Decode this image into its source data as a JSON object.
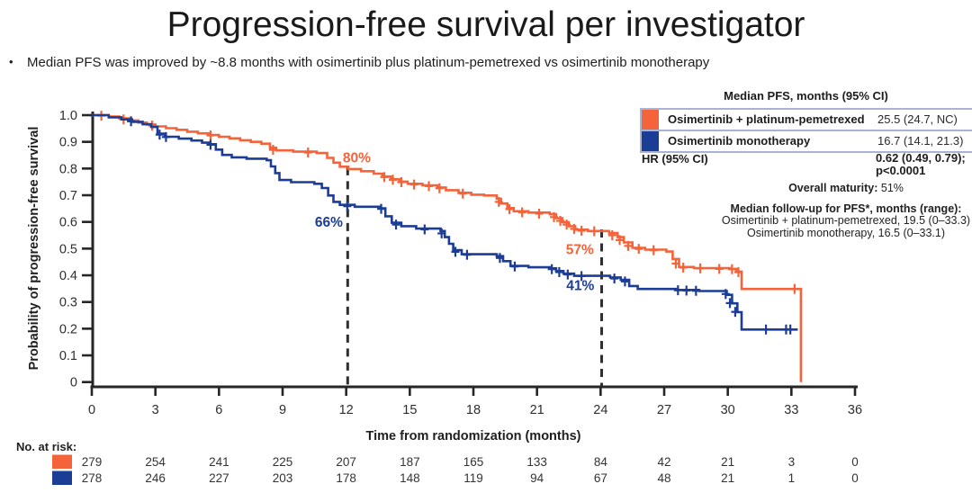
{
  "title": "Progression-free survival per investigator",
  "bullet": "Median PFS was improved by ~8.8 months with osimertinib plus platinum-pemetrexed vs osimertinib monotherapy",
  "colors": {
    "orange": "#F4633A",
    "blue": "#1C3D96",
    "axis": "#262626",
    "dashed": "#2F2F2F",
    "table_border": "#A9B3D2",
    "text": "#1c1c1c"
  },
  "legend_table": {
    "header": "Median PFS, months (95% CI)",
    "rows": [
      {
        "label": "Osimertinib + platinum-pemetrexed",
        "value": "25.5 (24.7, NC)",
        "color_key": "orange"
      },
      {
        "label": "Osimertinib monotherapy",
        "value": "16.7 (14.1, 21.3)",
        "color_key": "blue"
      }
    ],
    "hr_label": "HR (95% CI)",
    "hr_value_line1": "0.62 (0.49, 0.79);",
    "hr_value_line2": "p<0.0001"
  },
  "maturity": {
    "label": "Overall maturity:",
    "value": " 51%"
  },
  "followup": {
    "header": "Median follow-up for PFS*, months (range):",
    "line1": "Osimertinib + platinum-pemetrexed, 19.5 (0–33.3)",
    "line2": "Osimertinib monotherapy, 16.5 (0–33.1)"
  },
  "chart_data": {
    "type": "line",
    "subtype": "kaplan-meier-step",
    "xlabel": "Time from randomization (months)",
    "ylabel": "Probability of progression-free survival",
    "xlim": [
      0,
      36
    ],
    "ylim": [
      0,
      1.0
    ],
    "xticks": [
      0,
      3,
      6,
      9,
      12,
      15,
      18,
      21,
      24,
      27,
      30,
      33,
      36
    ],
    "ytick_labels": [
      "0",
      "0.1",
      "0.2",
      "0.3",
      "0.4",
      "0.5",
      "0.6",
      "0.7",
      "0.8",
      "0.9",
      "1.0"
    ],
    "grid": false,
    "reference_lines": [
      {
        "x": 12.07,
        "y_top": 0.805
      },
      {
        "x": 24.05,
        "y_top": 0.572
      }
    ],
    "annotations": [
      {
        "text": "80%",
        "x": 12.5,
        "y": 0.823,
        "color_key": "orange"
      },
      {
        "text": "66%",
        "x": 11.18,
        "y": 0.582,
        "color_key": "blue"
      },
      {
        "text": "57%",
        "x": 23.02,
        "y": 0.479,
        "color_key": "orange"
      },
      {
        "text": "41%",
        "x": 23.04,
        "y": 0.344,
        "color_key": "blue"
      }
    ],
    "landmark_estimates": [
      {
        "month": 12,
        "orange_pct": 80,
        "blue_pct": 66
      },
      {
        "month": 24,
        "orange_pct": 57,
        "blue_pct": 41
      }
    ],
    "series": [
      {
        "name": "Osimertinib + platinum-pemetrexed",
        "color_key": "orange",
        "steps": [
          [
            0,
            1
          ],
          [
            0.8,
            0.995
          ],
          [
            1.3,
            0.988
          ],
          [
            1.8,
            0.98
          ],
          [
            2.2,
            0.972
          ],
          [
            2.6,
            0.965
          ],
          [
            3,
            0.958
          ],
          [
            3.5,
            0.951
          ],
          [
            4,
            0.945
          ],
          [
            4.5,
            0.938
          ],
          [
            5,
            0.932
          ],
          [
            5.5,
            0.926
          ],
          [
            6,
            0.919
          ],
          [
            6.5,
            0.913
          ],
          [
            7,
            0.906
          ],
          [
            7.5,
            0.9
          ],
          [
            8,
            0.893
          ],
          [
            8.4,
            0.878
          ],
          [
            8.7,
            0.868
          ],
          [
            9.5,
            0.863
          ],
          [
            10.6,
            0.858
          ],
          [
            11.1,
            0.84
          ],
          [
            11.4,
            0.822
          ],
          [
            11.7,
            0.807
          ],
          [
            12.1,
            0.798
          ],
          [
            12.7,
            0.79
          ],
          [
            13.3,
            0.781
          ],
          [
            13.7,
            0.77
          ],
          [
            14.1,
            0.76
          ],
          [
            14.5,
            0.751
          ],
          [
            14.9,
            0.743
          ],
          [
            15.6,
            0.737
          ],
          [
            16.3,
            0.729
          ],
          [
            16.7,
            0.719
          ],
          [
            17.3,
            0.709
          ],
          [
            17.9,
            0.702
          ],
          [
            18.5,
            0.699
          ],
          [
            19.1,
            0.687
          ],
          [
            19.3,
            0.669
          ],
          [
            19.6,
            0.652
          ],
          [
            19.9,
            0.64
          ],
          [
            20.6,
            0.635
          ],
          [
            21.6,
            0.629
          ],
          [
            21.9,
            0.614
          ],
          [
            22.2,
            0.599
          ],
          [
            22.5,
            0.584
          ],
          [
            22.8,
            0.571
          ],
          [
            23.4,
            0.566
          ],
          [
            24.4,
            0.558
          ],
          [
            24.8,
            0.543
          ],
          [
            25.1,
            0.523
          ],
          [
            25.5,
            0.503
          ],
          [
            26.1,
            0.496
          ],
          [
            27.1,
            0.489
          ],
          [
            27.4,
            0.461
          ],
          [
            27.7,
            0.431
          ],
          [
            28.4,
            0.427
          ],
          [
            30.1,
            0.424
          ],
          [
            30.4,
            0.414
          ],
          [
            30.65,
            0.349
          ],
          [
            33.45,
            0.349
          ],
          [
            33.45,
            0
          ]
        ],
        "censors": [
          [
            0.45,
            0.998
          ],
          [
            1.5,
            0.984
          ],
          [
            2.85,
            0.961
          ],
          [
            5.6,
            0.924
          ],
          [
            8.55,
            0.87
          ],
          [
            10.2,
            0.86
          ],
          [
            13.8,
            0.768
          ],
          [
            14.2,
            0.758
          ],
          [
            14.6,
            0.749
          ],
          [
            15.2,
            0.74
          ],
          [
            15.9,
            0.734
          ],
          [
            16.4,
            0.726
          ],
          [
            17.5,
            0.706
          ],
          [
            19.2,
            0.675
          ],
          [
            19.7,
            0.648
          ],
          [
            20.3,
            0.636
          ],
          [
            21.1,
            0.631
          ],
          [
            21.8,
            0.618
          ],
          [
            22.1,
            0.604
          ],
          [
            22.4,
            0.59
          ],
          [
            22.75,
            0.574
          ],
          [
            23.1,
            0.567
          ],
          [
            23.7,
            0.565
          ],
          [
            24.55,
            0.55
          ],
          [
            24.9,
            0.532
          ],
          [
            25.3,
            0.51
          ],
          [
            25.8,
            0.499
          ],
          [
            26.5,
            0.494
          ],
          [
            27.55,
            0.444
          ],
          [
            27.9,
            0.429
          ],
          [
            28.7,
            0.426
          ],
          [
            29.6,
            0.424
          ],
          [
            30.2,
            0.423
          ],
          [
            30.5,
            0.412
          ],
          [
            33.15,
            0.349
          ]
        ]
      },
      {
        "name": "Osimertinib monotherapy",
        "color_key": "blue",
        "steps": [
          [
            0,
            1
          ],
          [
            0.8,
            0.992
          ],
          [
            1.4,
            0.984
          ],
          [
            1.9,
            0.975
          ],
          [
            2.4,
            0.966
          ],
          [
            2.8,
            0.956
          ],
          [
            3.1,
            0.931
          ],
          [
            3.45,
            0.919
          ],
          [
            4.1,
            0.912
          ],
          [
            4.7,
            0.905
          ],
          [
            5.2,
            0.897
          ],
          [
            5.55,
            0.891
          ],
          [
            5.85,
            0.871
          ],
          [
            6.15,
            0.851
          ],
          [
            6.6,
            0.842
          ],
          [
            7.3,
            0.837
          ],
          [
            8.25,
            0.831
          ],
          [
            8.45,
            0.808
          ],
          [
            8.65,
            0.783
          ],
          [
            8.85,
            0.757
          ],
          [
            9.4,
            0.749
          ],
          [
            10.5,
            0.743
          ],
          [
            10.85,
            0.727
          ],
          [
            11.15,
            0.699
          ],
          [
            11.4,
            0.675
          ],
          [
            11.7,
            0.664
          ],
          [
            12.4,
            0.657
          ],
          [
            13.6,
            0.651
          ],
          [
            13.85,
            0.621
          ],
          [
            14.15,
            0.597
          ],
          [
            14.6,
            0.584
          ],
          [
            15.3,
            0.575
          ],
          [
            16.45,
            0.566
          ],
          [
            16.65,
            0.543
          ],
          [
            16.85,
            0.518
          ],
          [
            17.05,
            0.494
          ],
          [
            17.45,
            0.479
          ],
          [
            19.1,
            0.472
          ],
          [
            19.4,
            0.453
          ],
          [
            19.75,
            0.435
          ],
          [
            20.6,
            0.43
          ],
          [
            21.6,
            0.426
          ],
          [
            21.9,
            0.416
          ],
          [
            22.25,
            0.406
          ],
          [
            22.75,
            0.398
          ],
          [
            24.45,
            0.392
          ],
          [
            24.95,
            0.383
          ],
          [
            25.35,
            0.36
          ],
          [
            25.75,
            0.349
          ],
          [
            27.55,
            0.345
          ],
          [
            28.65,
            0.341
          ],
          [
            29.95,
            0.327
          ],
          [
            30.2,
            0.295
          ],
          [
            30.45,
            0.262
          ],
          [
            30.65,
            0.197
          ],
          [
            33.3,
            0.197
          ]
        ],
        "censors": [
          [
            1.85,
            0.977
          ],
          [
            3.2,
            0.927
          ],
          [
            3.5,
            0.918
          ],
          [
            5.6,
            0.889
          ],
          [
            12.05,
            0.659
          ],
          [
            13.65,
            0.649
          ],
          [
            14.35,
            0.59
          ],
          [
            15.7,
            0.572
          ],
          [
            16.5,
            0.557
          ],
          [
            17.15,
            0.488
          ],
          [
            17.7,
            0.477
          ],
          [
            19.25,
            0.465
          ],
          [
            19.95,
            0.433
          ],
          [
            21.7,
            0.423
          ],
          [
            22.05,
            0.412
          ],
          [
            22.45,
            0.403
          ],
          [
            23.1,
            0.397
          ],
          [
            24.65,
            0.388
          ],
          [
            25.15,
            0.377
          ],
          [
            27.65,
            0.344
          ],
          [
            28.05,
            0.343
          ],
          [
            28.5,
            0.342
          ],
          [
            29.9,
            0.33
          ],
          [
            30.1,
            0.296
          ],
          [
            30.35,
            0.263
          ],
          [
            31.8,
            0.197
          ],
          [
            32.75,
            0.197
          ],
          [
            32.95,
            0.197
          ]
        ]
      }
    ]
  },
  "at_risk": {
    "label": "No. at risk:",
    "timepoints": [
      0,
      3,
      6,
      9,
      12,
      15,
      18,
      21,
      24,
      27,
      30,
      33,
      36
    ],
    "rows": [
      {
        "color_key": "orange",
        "counts": [
          "279",
          "254",
          "241",
          "225",
          "207",
          "187",
          "165",
          "133",
          "84",
          "42",
          "21",
          "3",
          "0"
        ]
      },
      {
        "color_key": "blue",
        "counts": [
          "278",
          "246",
          "227",
          "203",
          "178",
          "148",
          "119",
          "94",
          "67",
          "48",
          "21",
          "1",
          "0"
        ]
      }
    ]
  }
}
